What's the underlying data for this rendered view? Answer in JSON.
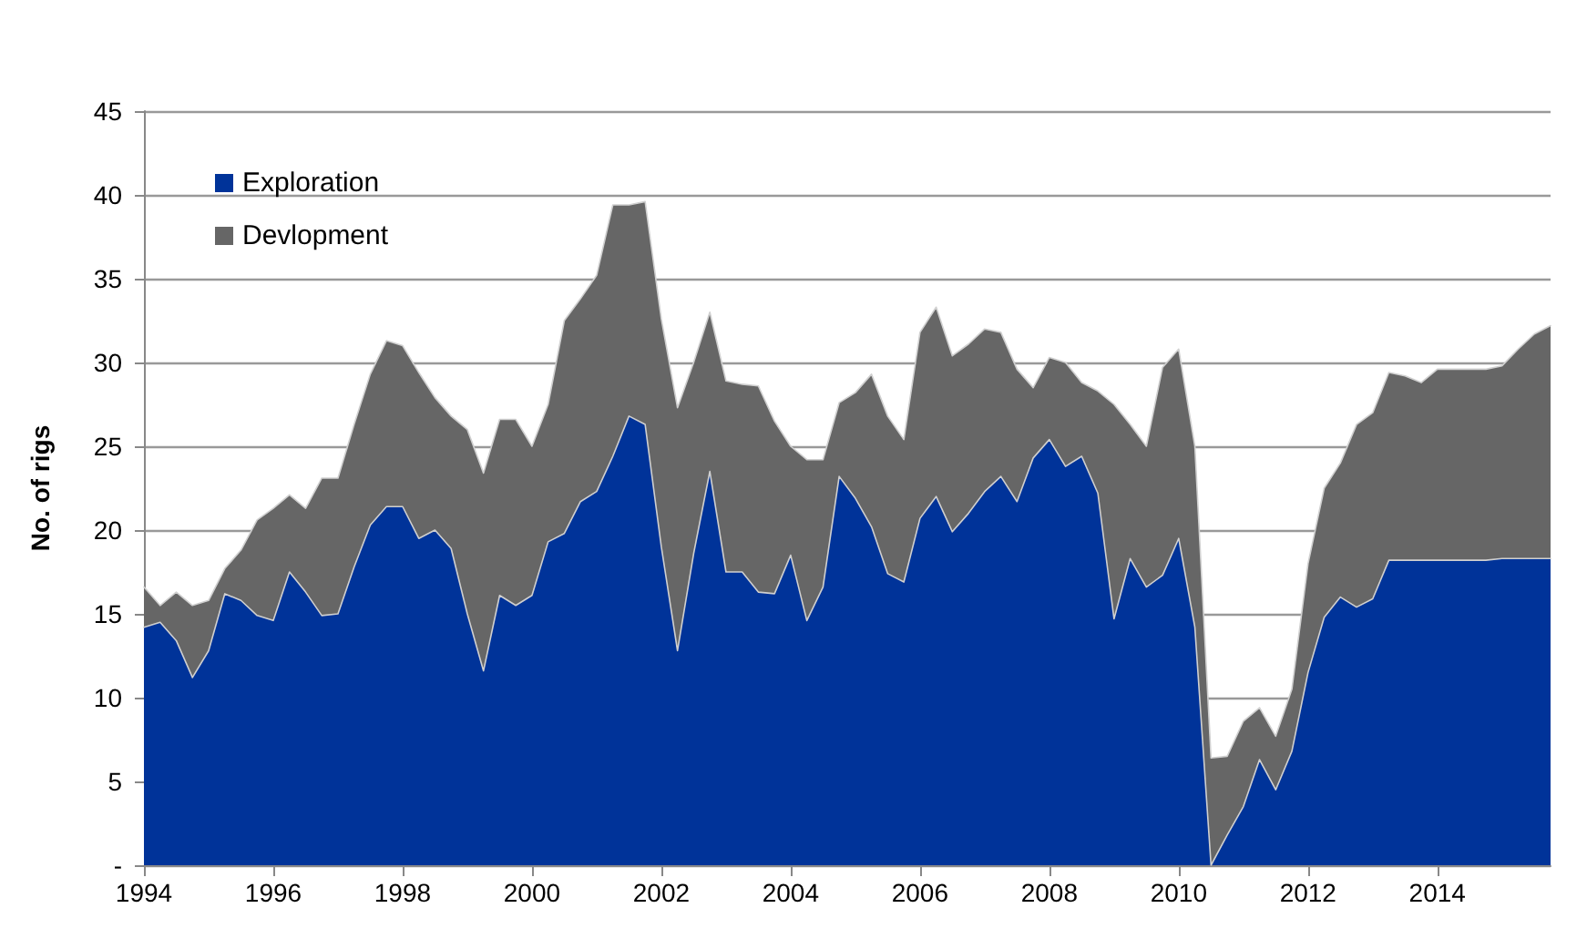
{
  "chart_data": {
    "type": "area",
    "ylabel": "No. of rigs",
    "stacked": true,
    "grid": "y",
    "legend": "top left",
    "marker": "none",
    "x": [
      1994,
      1994.25,
      1994.5,
      1994.75,
      1995,
      1995.25,
      1995.5,
      1995.75,
      1996,
      1996.25,
      1996.5,
      1996.75,
      1997,
      1997.25,
      1997.5,
      1997.75,
      1998,
      1998.25,
      1998.5,
      1998.75,
      1999,
      1999.25,
      1999.5,
      1999.75,
      2000,
      2000.25,
      2000.5,
      2000.75,
      2001,
      2001.25,
      2001.5,
      2001.75,
      2002,
      2002.25,
      2002.5,
      2002.75,
      2003,
      2003.25,
      2003.5,
      2003.75,
      2004,
      2004.25,
      2004.5,
      2004.75,
      2005,
      2005.25,
      2005.5,
      2005.75,
      2006,
      2006.25,
      2006.5,
      2006.75,
      2007,
      2007.25,
      2007.5,
      2007.75,
      2008,
      2008.25,
      2008.5,
      2008.75,
      2009,
      2009.25,
      2009.5,
      2009.75,
      2010,
      2010.25,
      2010.5,
      2010.75,
      2011,
      2011.25,
      2011.5,
      2011.75,
      2012,
      2012.25,
      2012.5,
      2012.75,
      2013,
      2013.25,
      2013.5,
      2013.75,
      2014,
      2014.25,
      2014.5,
      2014.75,
      2015,
      2015.25,
      2015.5,
      2015.75
    ],
    "xlim": [
      1994,
      2015.75
    ],
    "xticks": [
      1994,
      1996,
      1998,
      2000,
      2002,
      2004,
      2006,
      2008,
      2010,
      2012,
      2014
    ],
    "ylim": [
      0,
      45
    ],
    "yticks": [
      {
        "value": 0,
        "label": "-"
      },
      5,
      10,
      15,
      20,
      25,
      30,
      35,
      40,
      45
    ],
    "series": [
      {
        "name": "Exploration",
        "color": "#003399",
        "values": [
          14.2,
          14.5,
          13.4,
          11.2,
          12.8,
          16.2,
          15.8,
          14.9,
          14.6,
          17.5,
          16.3,
          14.9,
          15.0,
          17.8,
          20.3,
          21.4,
          21.4,
          19.5,
          20.0,
          18.9,
          15.0,
          11.6,
          16.1,
          15.5,
          16.1,
          19.3,
          19.8,
          21.7,
          22.3,
          24.4,
          26.8,
          26.3,
          19.0,
          12.8,
          18.6,
          23.5,
          17.5,
          17.5,
          16.3,
          16.2,
          18.5,
          14.6,
          16.6,
          23.2,
          21.9,
          20.2,
          17.4,
          16.9,
          20.7,
          22.0,
          19.9,
          21.0,
          22.3,
          23.2,
          21.7,
          24.3,
          25.4,
          23.8,
          24.4,
          22.2,
          14.7,
          18.3,
          16.6,
          17.3,
          19.5,
          14.2,
          0.0,
          1.8,
          3.5,
          6.3,
          4.5,
          6.8,
          11.5,
          14.8,
          16.0,
          15.4,
          15.9,
          18.2,
          18.2,
          18.2,
          18.2,
          18.2,
          18.2,
          18.2,
          18.3,
          18.3,
          18.3,
          18.3
        ]
      },
      {
        "name": "Devlopment",
        "color": "#666666",
        "values": [
          2.4,
          1.0,
          2.9,
          4.3,
          3.0,
          1.5,
          3.0,
          5.7,
          6.7,
          4.6,
          5.0,
          8.2,
          8.1,
          8.5,
          9.0,
          9.9,
          9.6,
          9.9,
          7.9,
          7.9,
          11.0,
          11.8,
          10.5,
          11.1,
          8.9,
          8.2,
          12.7,
          12.1,
          12.9,
          15.0,
          12.6,
          13.3,
          13.6,
          14.5,
          11.4,
          9.5,
          11.4,
          11.2,
          12.3,
          10.3,
          6.5,
          9.6,
          7.6,
          4.4,
          6.3,
          9.1,
          9.4,
          8.5,
          11.1,
          11.3,
          10.5,
          10.1,
          9.7,
          8.6,
          7.9,
          4.2,
          4.9,
          6.2,
          4.4,
          6.1,
          12.8,
          8.0,
          8.4,
          12.4,
          11.3,
          10.8,
          6.4,
          4.7,
          5.1,
          3.1,
          3.2,
          3.7,
          6.5,
          7.7,
          8.0,
          10.9,
          11.1,
          11.2,
          11.0,
          10.6,
          11.4,
          11.4,
          11.4,
          11.4,
          11.5,
          12.5,
          13.4,
          13.9
        ]
      }
    ]
  }
}
